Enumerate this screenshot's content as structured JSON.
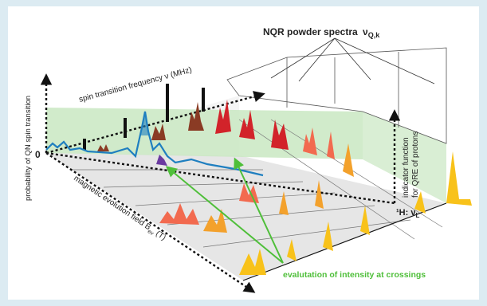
{
  "diagram": {
    "title": "NQR powder spectra",
    "title_symbol": "ν",
    "title_subscript": "Q,k",
    "axis_frequency": "spin transition frequency  ν (MHz)",
    "axis_probability": "probability of QN spin transition",
    "axis_field_main": "magnetic evolution field B",
    "axis_field_sub": "ev",
    "axis_field_unit": " (T)",
    "proton_axis": "¹H: ν",
    "proton_axis_sub": "L",
    "indicator_line1": "indicator function",
    "indicator_line2": "for QRE of protons",
    "evaluation_label": "evalutation of intensity at crossings",
    "origin_label": "0"
  },
  "colors": {
    "background": "#dcebf2",
    "panel": "#ffffff",
    "plane_green": "#c9e7c2",
    "floor_grey": "#e6e6e6",
    "stick_black": "#111111",
    "brown": "#8a3b24",
    "dark_red": "#d2232a",
    "orange_red": "#f26a4f",
    "orange": "#f3a12c",
    "yellow": "#f8c21a",
    "blue": "#1f7fc0",
    "purple": "#6a3aa0",
    "arrow_green": "#4fbf3a"
  }
}
